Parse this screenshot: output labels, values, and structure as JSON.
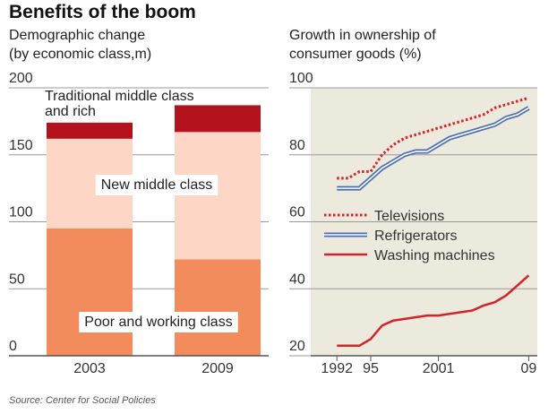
{
  "title": "Benefits of the boom",
  "source": "Source: Center for Social Policies",
  "chart_data": [
    {
      "type": "stacked-bar",
      "subtitle": [
        "Demographic change",
        "(by economic class,m)"
      ],
      "categories": [
        "2003",
        "2009"
      ],
      "series": [
        {
          "name": "Poor and working class",
          "color": "#f28c5c",
          "values": [
            95,
            72
          ]
        },
        {
          "name": "New middle class",
          "color": "#fdd6c5",
          "values": [
            67,
            95
          ]
        },
        {
          "name": "Traditional middle class and rich",
          "color": "#b3121c",
          "values": [
            12,
            20
          ]
        }
      ],
      "ylim": [
        0,
        200
      ],
      "yticks": [
        0,
        50,
        100,
        150,
        200
      ],
      "grid": true
    },
    {
      "type": "line",
      "subtitle": [
        "Growth in ownership of",
        "consumer goods (%)"
      ],
      "x": [
        1992,
        1993,
        1994,
        1995,
        1996,
        1997,
        1998,
        1999,
        2000,
        2001,
        2002,
        2003,
        2004,
        2005,
        2006,
        2007,
        2008,
        2009
      ],
      "series": [
        {
          "name": "Televisions",
          "color": "#d2232a",
          "style": "dotted",
          "values": [
            73,
            73,
            75,
            75,
            80,
            83,
            85,
            86,
            87,
            88,
            89,
            90,
            91,
            92,
            94,
            95,
            96,
            97
          ]
        },
        {
          "name": "Refrigerators",
          "color": "#4a6fb5",
          "style": "double",
          "values": [
            70,
            70,
            70,
            73,
            76,
            78,
            80,
            81,
            81,
            83,
            85,
            86,
            87,
            88,
            89,
            91,
            92,
            94
          ]
        },
        {
          "name": "Washing machines",
          "color": "#d2232a",
          "style": "solid",
          "values": [
            23,
            23,
            23,
            25,
            29,
            30.5,
            31,
            31.5,
            32,
            32,
            32.5,
            33,
            33.5,
            35,
            36,
            38,
            41,
            44
          ]
        }
      ],
      "xlim": [
        1990,
        2010
      ],
      "xticks": [
        1992,
        {
          "value": 1995,
          "label": "95"
        },
        2001,
        {
          "value": 2009,
          "label": "09"
        }
      ],
      "ylim": [
        20,
        100
      ],
      "yticks": [
        20,
        40,
        60,
        80,
        100
      ],
      "grid": true,
      "background": "#ece9dd"
    }
  ]
}
